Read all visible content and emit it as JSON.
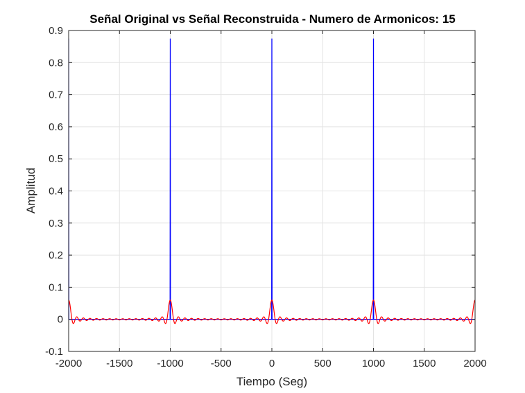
{
  "chart_data": {
    "type": "line",
    "title": "Señal Original vs Señal Reconstruida - Numero de Armonicos: 15",
    "xlabel": "Tiempo (Seg)",
    "ylabel": "Amplitud",
    "xlim": [
      -2000,
      2000
    ],
    "ylim": [
      -0.1,
      0.9
    ],
    "xticks": [
      -2000,
      -1500,
      -1000,
      -500,
      0,
      500,
      1000,
      1500,
      2000
    ],
    "yticks": [
      -0.1,
      0,
      0.1,
      0.2,
      0.3,
      0.4,
      0.5,
      0.6,
      0.7,
      0.8,
      0.9
    ],
    "xtick_labels": [
      "-2000",
      "-1500",
      "-1000",
      "-500",
      "0",
      "500",
      "1000",
      "1500",
      "2000"
    ],
    "ytick_labels": [
      "-0.1",
      "0",
      "0.1",
      "0.2",
      "0.3",
      "0.4",
      "0.5",
      "0.6",
      "0.7",
      "0.8",
      "0.9"
    ],
    "grid": true,
    "series": [
      {
        "color": "#0000ff",
        "shape": "impulse-train",
        "period": 1000,
        "peak_positions": [
          -2000,
          -1000,
          0,
          1000
        ],
        "peak_value": 0.875,
        "baseline": 0
      },
      {
        "color": "#ff0000",
        "shape": "fourier-reconstruction",
        "harmonics": 15,
        "period": 1000,
        "peak_positions": [
          -2000,
          -1000,
          0,
          1000,
          2000
        ],
        "peak_value": 0.06,
        "min_value": -0.012
      }
    ]
  }
}
